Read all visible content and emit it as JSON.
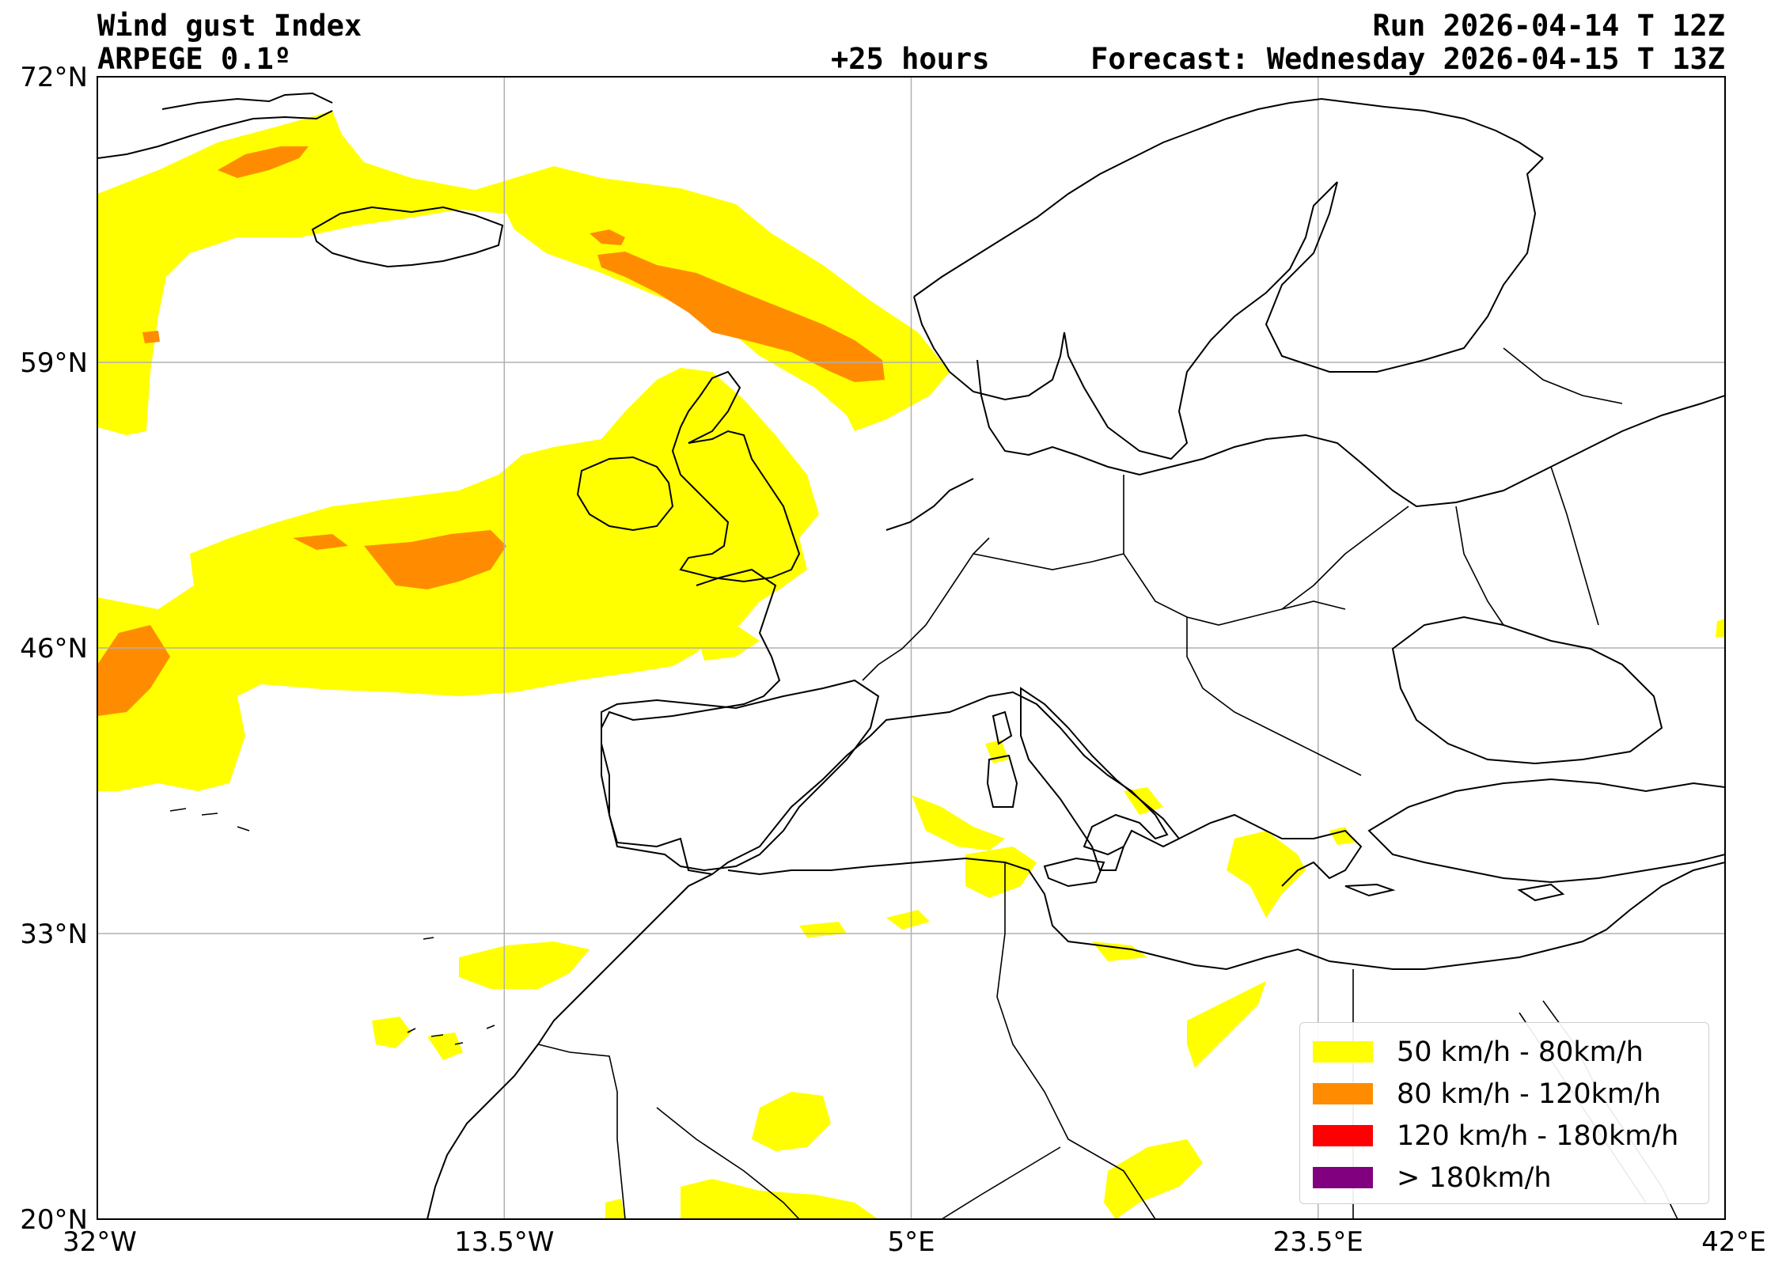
{
  "header": {
    "title": "Wind gust Index",
    "model": "ARPEGE 0.1º",
    "run": "Run 2026-04-14 T 12Z",
    "lead": "+25 hours",
    "forecast": "Forecast: Wednesday 2026-04-15 T 13Z"
  },
  "map": {
    "lon_range": [
      -32,
      42
    ],
    "lat_range": [
      20,
      72
    ],
    "gridlines": true,
    "lat_ticks": [
      {
        "value": 72,
        "label": "72°N"
      },
      {
        "value": 59,
        "label": "59°N"
      },
      {
        "value": 46,
        "label": "46°N"
      },
      {
        "value": 33,
        "label": "33°N"
      },
      {
        "value": 20,
        "label": "20°N"
      }
    ],
    "lon_ticks": [
      {
        "value": -32,
        "label": "32°W"
      },
      {
        "value": -13.5,
        "label": "13.5°W"
      },
      {
        "value": 5,
        "label": "5°E"
      },
      {
        "value": 23.5,
        "label": "23.5°E"
      },
      {
        "value": 42,
        "label": "42°E"
      }
    ]
  },
  "legend": {
    "placement": "lower-right",
    "items": [
      {
        "label": "50 km/h - 80km/h",
        "color": "#ffff00"
      },
      {
        "label": "80 km/h - 120km/h",
        "color": "#ff8c00"
      },
      {
        "label": "120 km/h - 180km/h",
        "color": "#ff0000"
      },
      {
        "label": "> 180km/h",
        "color": "#800080"
      }
    ]
  },
  "colors": {
    "band_50_80": "#ffff00",
    "band_80_120": "#ff8c00",
    "coastline": "#000000",
    "grid": "#b0b0b0"
  }
}
